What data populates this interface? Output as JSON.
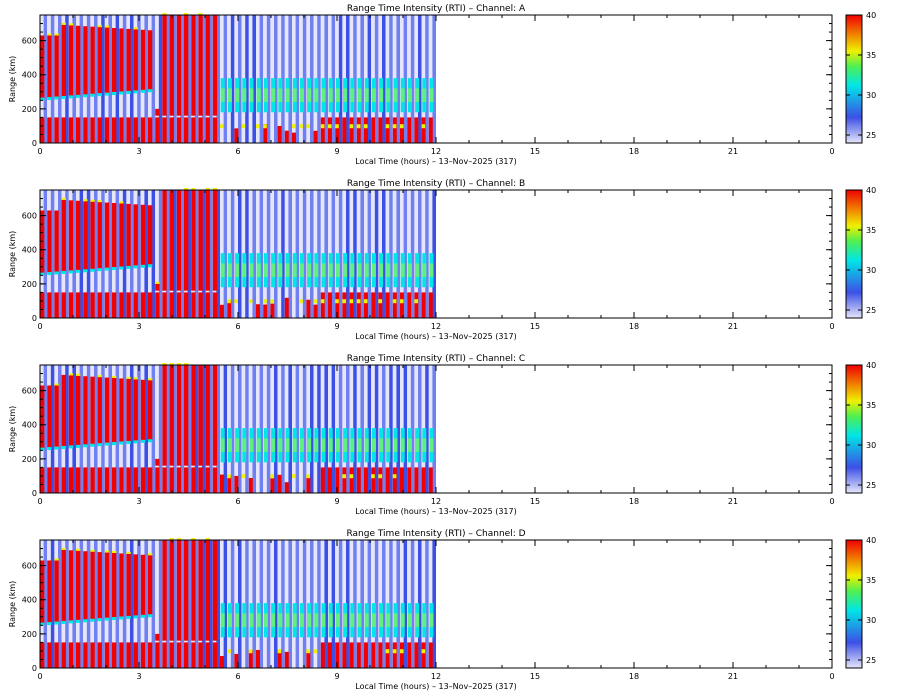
{
  "chart_data": [
    {
      "type": "heatmap",
      "title": "Range Time Intensity (RTI) – Channel: A",
      "xlabel": "Local Time (hours) – 13–Nov–2025 (317)",
      "ylabel": "Range (km)",
      "xlim": [
        0,
        24
      ],
      "ylim": [
        0,
        750
      ],
      "x_ticks": [
        "0",
        "3",
        "6",
        "9",
        "12",
        "15",
        "18",
        "21",
        "0"
      ],
      "y_ticks": [
        "0",
        "200",
        "400",
        "600"
      ],
      "colorbar": {
        "min": 24,
        "max": 40,
        "ticks": [
          "25",
          "30",
          "35",
          "40"
        ]
      },
      "data_end_hour": 12
    },
    {
      "type": "heatmap",
      "title": "Range Time Intensity (RTI) – Channel: B",
      "xlabel": "Local Time (hours) – 13–Nov–2025 (317)",
      "ylabel": "Range (km)",
      "xlim": [
        0,
        24
      ],
      "ylim": [
        0,
        750
      ],
      "x_ticks": [
        "0",
        "3",
        "6",
        "9",
        "12",
        "15",
        "18",
        "21",
        "0"
      ],
      "y_ticks": [
        "0",
        "200",
        "400",
        "600"
      ],
      "colorbar": {
        "min": 24,
        "max": 40,
        "ticks": [
          "25",
          "30",
          "35",
          "40"
        ]
      },
      "data_end_hour": 12
    },
    {
      "type": "heatmap",
      "title": "Range Time Intensity (RTI) – Channel: C",
      "xlabel": "Local Time (hours) – 13–Nov–2025 (317)",
      "ylabel": "Range (km)",
      "xlim": [
        0,
        24
      ],
      "ylim": [
        0,
        750
      ],
      "x_ticks": [
        "0",
        "3",
        "6",
        "9",
        "12",
        "15",
        "18",
        "21",
        "0"
      ],
      "y_ticks": [
        "0",
        "200",
        "400",
        "600"
      ],
      "colorbar": {
        "min": 24,
        "max": 40,
        "ticks": [
          "25",
          "30",
          "35",
          "40"
        ]
      },
      "data_end_hour": 12
    },
    {
      "type": "heatmap",
      "title": "Range Time Intensity (RTI) – Channel: D",
      "xlabel": "Local Time (hours) – 13–Nov–2025 (317)",
      "ylabel": "Range (km)",
      "xlim": [
        0,
        24
      ],
      "ylim": [
        0,
        750
      ],
      "x_ticks": [
        "0",
        "3",
        "6",
        "9",
        "12",
        "15",
        "18",
        "21",
        "0"
      ],
      "y_ticks": [
        "0",
        "200",
        "400",
        "600"
      ],
      "colorbar": {
        "min": 24,
        "max": 40,
        "ticks": [
          "25",
          "30",
          "35",
          "40"
        ]
      },
      "data_end_hour": 12
    }
  ],
  "colors": {
    "low": "#e6e6fa",
    "mid_low": "#3c50e6",
    "mid": "#00e6e6",
    "mid_high": "#f0f000",
    "high": "#f00000"
  }
}
